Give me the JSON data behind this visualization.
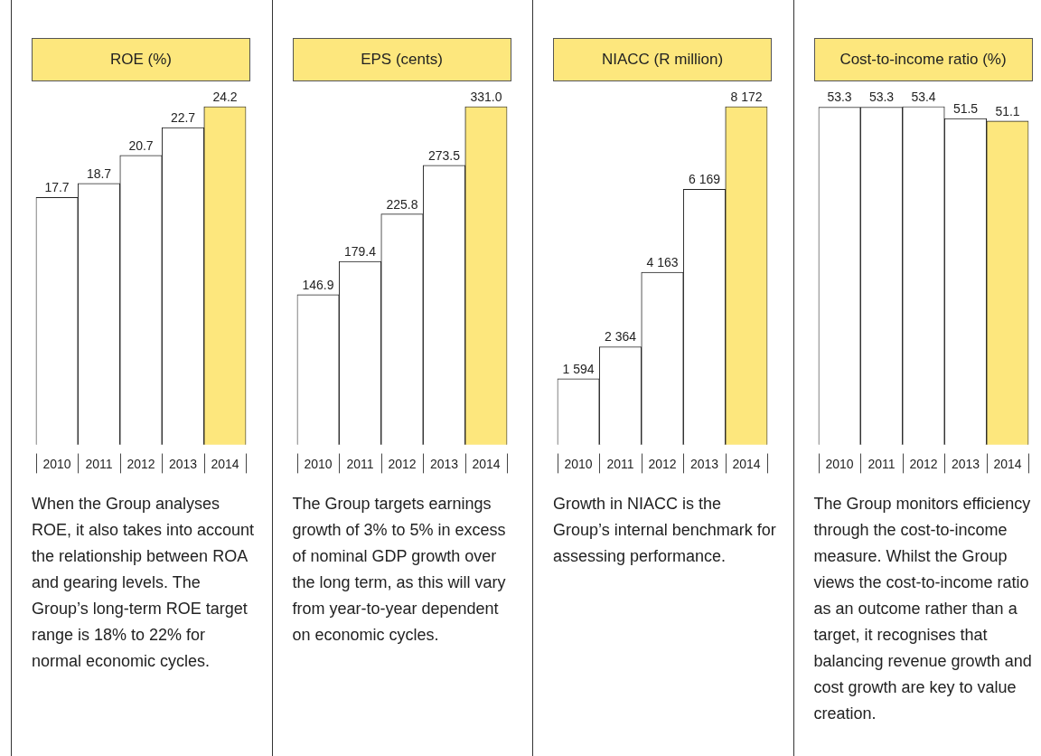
{
  "chart_data": [
    {
      "type": "bar",
      "title": "ROE (%)",
      "categories": [
        "2010",
        "2011",
        "2012",
        "2013",
        "2014"
      ],
      "values": [
        17.7,
        18.7,
        20.7,
        22.7,
        24.2
      ],
      "colors": [
        "#ffffff",
        "#ffffff",
        "#ffffff",
        "#ffffff",
        "#fde77d"
      ],
      "value_labels": [
        "17.7",
        "18.7",
        "20.7",
        "22.7",
        "24.2"
      ],
      "grid": false,
      "legend": false,
      "annotations": [
        "When the Group analyses ROE, it also takes into account the relationship between ROA and gearing levels. The Group’s long-term ROE target range is 18% to 22% for normal economic cycles."
      ]
    },
    {
      "type": "bar",
      "title": "EPS (cents)",
      "categories": [
        "2010",
        "2011",
        "2012",
        "2013",
        "2014"
      ],
      "values": [
        146.9,
        179.4,
        225.8,
        273.5,
        331.0
      ],
      "colors": [
        "#ffffff",
        "#ffffff",
        "#ffffff",
        "#ffffff",
        "#fde77d"
      ],
      "value_labels": [
        "146.9",
        "179.4",
        "225.8",
        "273.5",
        "331.0"
      ],
      "grid": false,
      "legend": false,
      "annotations": [
        "The Group targets earnings growth of 3% to 5% in excess of nominal GDP growth over the long term, as this will vary from year-to-year dependent on economic cycles."
      ]
    },
    {
      "type": "bar",
      "title": "NIACC (R million)",
      "categories": [
        "2010",
        "2011",
        "2012",
        "2013",
        "2014"
      ],
      "values": [
        1594,
        2364,
        4163,
        6169,
        8172
      ],
      "colors": [
        "#ffffff",
        "#ffffff",
        "#ffffff",
        "#ffffff",
        "#fde77d"
      ],
      "value_labels": [
        "1 594",
        "2 364",
        "4 163",
        "6 169",
        "8 172"
      ],
      "grid": false,
      "legend": false,
      "annotations": [
        "Growth in NIACC is the Group’s internal benchmark for assessing performance."
      ]
    },
    {
      "type": "bar",
      "title": "Cost-to-income ratio (%)",
      "categories": [
        "2010",
        "2011",
        "2012",
        "2013",
        "2014"
      ],
      "values": [
        53.3,
        53.3,
        53.4,
        51.5,
        51.1
      ],
      "colors": [
        "#ffffff",
        "#ffffff",
        "#ffffff",
        "#ffffff",
        "#fde77d"
      ],
      "value_labels": [
        "53.3",
        "53.3",
        "53.4",
        "51.5",
        "51.1"
      ],
      "grid": false,
      "legend": false,
      "annotations": [
        "The Group monitors efficiency through the cost-to-income measure. Whilst the Group views the cost-to-income ratio as an outcome rather than a target, it recognises that balancing revenue growth and cost growth are key to value creation."
      ]
    }
  ]
}
